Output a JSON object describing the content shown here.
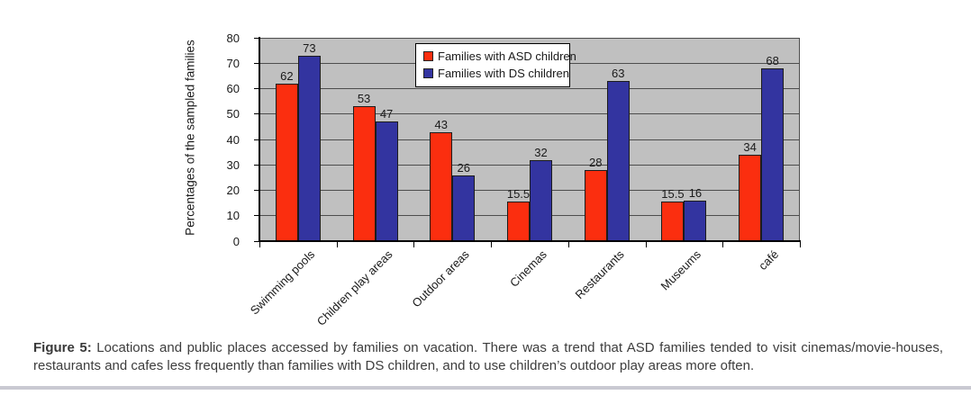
{
  "figure": {
    "caption_label": "Figure 5:",
    "caption_body": "Locations and public places accessed by families on vacation.  There was a trend that ASD families tended to visit cinemas/movie-houses, restaurants and cafes less frequently than families with DS children, and to use children’s outdoor play areas more often."
  },
  "chart_data": {
    "type": "bar",
    "title": "",
    "xlabel": "",
    "ylabel": "Percentages of the sampled families",
    "categories": [
      "Swimming pools",
      "Children play areas",
      "Outdoor areas",
      "Cinemas",
      "Restaurants",
      "Museums",
      "café"
    ],
    "series": [
      {
        "name": "Families with ASD children",
        "color": "#fb2e0f",
        "values": [
          62,
          53,
          43,
          15.5,
          28,
          15.5,
          34
        ]
      },
      {
        "name": "Families with DS children",
        "color": "#3334a0",
        "values": [
          73,
          47,
          26,
          32,
          63,
          16,
          68
        ]
      }
    ],
    "ylim": [
      0,
      80
    ],
    "yticks": [
      0,
      10,
      20,
      30,
      40,
      50,
      60,
      70,
      80
    ],
    "grid": true,
    "value_labels": true,
    "legend_position": "top-inside",
    "plot_bg": "#c0c0c0",
    "gridline_color": "#4d4d4d"
  }
}
